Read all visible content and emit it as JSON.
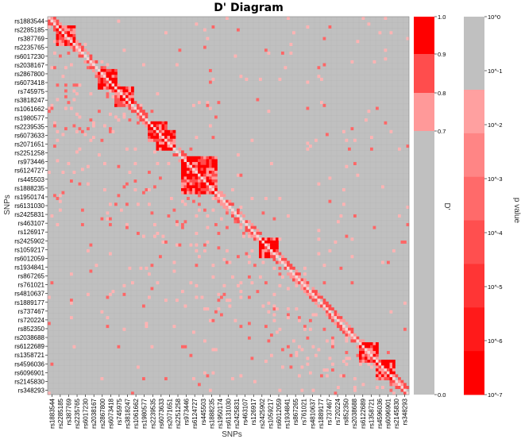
{
  "chart_data": {
    "type": "heatmap",
    "title": "D' Diagram",
    "xlabel": "SNPs",
    "ylabel": "SNPs",
    "snp_labels": [
      "rs1883544",
      "rs2285185",
      "rs387769",
      "rs2235765",
      "rs6017230",
      "rs2038167",
      "rs2867800",
      "rs6073418",
      "rs745975",
      "rs3818247",
      "rs1061662",
      "rs1980577",
      "rs2239535",
      "rs6073633",
      "rs2071651",
      "rs2251258",
      "rs973446",
      "rs6124727",
      "rs445503",
      "rs1888235",
      "rs1950174",
      "rs6131030",
      "rs2425831",
      "rs463107",
      "rs126917",
      "rs2425902",
      "rs1059217",
      "rs6012059",
      "rs1934841",
      "rs867265",
      "rs761021",
      "rs4810637",
      "rs1889177",
      "rs737467",
      "rs720224",
      "rs852350",
      "rs2038688",
      "rs6122689",
      "rs1358721",
      "rs4596036",
      "rs6096901",
      "rs2145830",
      "rs348293"
    ],
    "ld_blocks": [
      {
        "from": "rs2285185",
        "to": "rs387769"
      },
      {
        "from": "rs2867800",
        "to": "rs6073418"
      },
      {
        "from": "rs745975",
        "to": "rs3818247"
      },
      {
        "from": "rs2239535",
        "to": "rs6073633"
      },
      {
        "from": "rs6073633",
        "to": "rs2071651"
      },
      {
        "from": "rs973446",
        "to": "rs1888235"
      },
      {
        "from": "rs2425902",
        "to": "rs1059217"
      },
      {
        "from": "rs6122689",
        "to": "rs1358721"
      },
      {
        "from": "rs4596036",
        "to": "rs6096901"
      }
    ],
    "dprime_colorbar": {
      "label": "D'",
      "range": [
        0.0,
        1.0
      ],
      "threshold": 0.7,
      "ticks": [
        "1.0",
        "0.9",
        "0.8",
        "0.7",
        "0.0"
      ],
      "colors": [
        "#ff0000",
        "#ff4d4d",
        "#ff9999",
        "#c0c0c0"
      ]
    },
    "pvalue_colorbar": {
      "label": "p value",
      "ticks": [
        "10^0",
        "10^-1",
        "10^-2",
        "10^-3",
        "10^-4",
        "10^-5",
        "10^-6",
        "10^-7"
      ],
      "colors": [
        "#c0c0c0",
        "#c0c0c0",
        "#ffa0a0",
        "#ff8585",
        "#ff6a6a",
        "#ff4f4f",
        "#ff3535",
        "#ff1a1a",
        "#ff0000"
      ]
    },
    "grid": true,
    "background_color": "#c0c0c0"
  }
}
